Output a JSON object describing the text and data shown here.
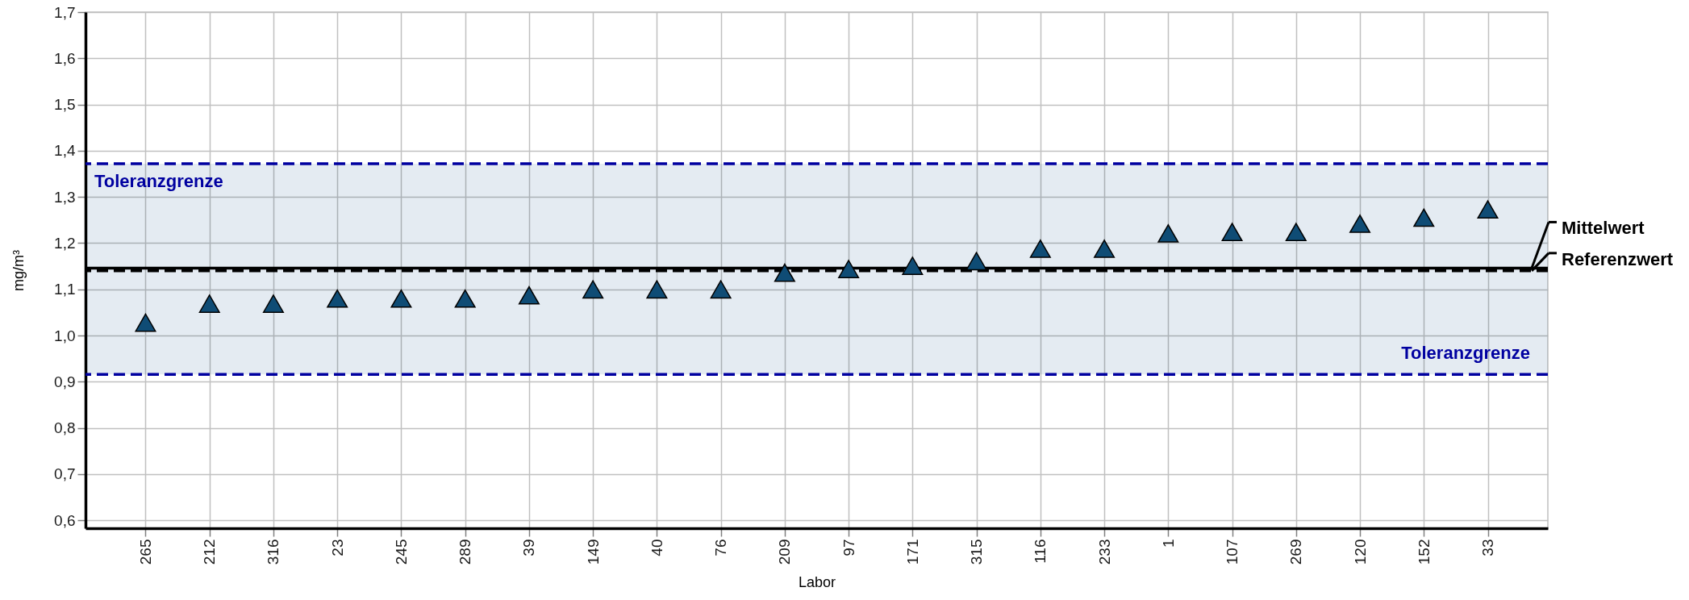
{
  "chart_data": {
    "type": "scatter",
    "xlabel": "Labor",
    "ylabel": "mg/m³",
    "categories": [
      "265",
      "212",
      "316",
      "23",
      "245",
      "289",
      "39",
      "149",
      "40",
      "76",
      "209",
      "97",
      "171",
      "315",
      "116",
      "233",
      "1",
      "107",
      "269",
      "120",
      "152",
      "33"
    ],
    "series": [
      {
        "color": "#0f4c75",
        "values": [
          1.028,
          1.069,
          1.069,
          1.08,
          1.08,
          1.08,
          1.087,
          1.1,
          1.1,
          1.1,
          1.136,
          1.144,
          1.151,
          1.161,
          1.188,
          1.188,
          1.221,
          1.224,
          1.224,
          1.242,
          1.255,
          1.273
        ]
      }
    ],
    "marker": "triangle",
    "grid": true,
    "ylim": [
      0.583,
      1.7
    ],
    "yticks": [
      {
        "value": 0.6,
        "label": "0,6"
      },
      {
        "value": 0.7,
        "label": "0,7"
      },
      {
        "value": 0.8,
        "label": "0,8"
      },
      {
        "value": 0.9,
        "label": "0,9"
      },
      {
        "value": 1.0,
        "label": "1,0"
      },
      {
        "value": 1.1,
        "label": "1,1"
      },
      {
        "value": 1.2,
        "label": "1,2"
      },
      {
        "value": 1.3,
        "label": "1,3"
      },
      {
        "value": 1.4,
        "label": "1,4"
      },
      {
        "value": 1.5,
        "label": "1,5"
      },
      {
        "value": 1.6,
        "label": "1,6"
      },
      {
        "value": 1.7,
        "label": "1,7"
      }
    ],
    "bands": [
      {
        "axis": "y",
        "from": 0.916,
        "to": 1.372,
        "color": "#e4ebf2"
      }
    ],
    "ref_lines": [
      {
        "axis": "y",
        "value": 1.372,
        "label": "Toleranzgrenze",
        "color": "#0000a0",
        "line_style": "dashed"
      },
      {
        "axis": "y",
        "value": 0.916,
        "label": "Toleranzgrenze",
        "color": "#0000a0",
        "line_style": "dashed"
      },
      {
        "axis": "y",
        "value": 1.146,
        "label": "Mittelwert",
        "color": "#000000",
        "line_style": "solid"
      },
      {
        "axis": "y",
        "value": 1.14,
        "label": "Referenzwert",
        "color": "#000000",
        "line_style": "dashed"
      }
    ]
  }
}
